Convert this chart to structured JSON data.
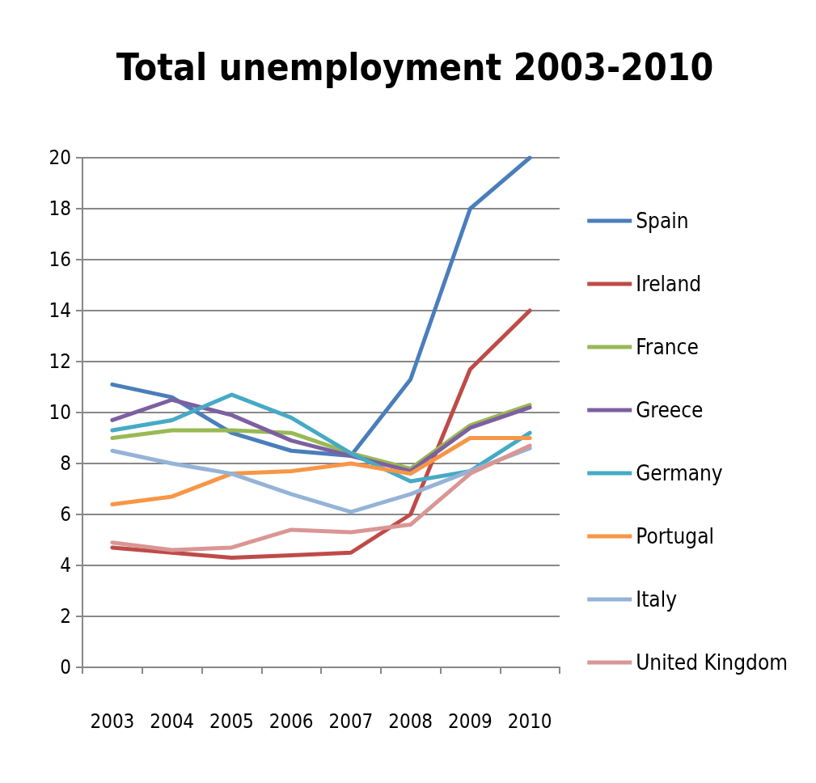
{
  "chart_data": {
    "type": "line",
    "title": "Total unemployment 2003-2010",
    "categories": [
      "2003",
      "2004",
      "2005",
      "2006",
      "2007",
      "2008",
      "2009",
      "2010"
    ],
    "series": [
      {
        "name": "Spain",
        "color": "#4a7ebb",
        "values": [
          11.1,
          10.6,
          9.2,
          8.5,
          8.3,
          11.3,
          18.0,
          20.0
        ]
      },
      {
        "name": "Ireland",
        "color": "#be4b48",
        "values": [
          4.7,
          4.5,
          4.3,
          4.4,
          4.5,
          6.0,
          11.7,
          14.0
        ]
      },
      {
        "name": "France",
        "color": "#98b954",
        "values": [
          9.0,
          9.3,
          9.3,
          9.2,
          8.4,
          7.8,
          9.5,
          10.3
        ]
      },
      {
        "name": "Greece",
        "color": "#7d60a0",
        "values": [
          9.7,
          10.5,
          9.9,
          8.9,
          8.3,
          7.7,
          9.4,
          10.2
        ]
      },
      {
        "name": "Germany",
        "color": "#46aac5",
        "values": [
          9.3,
          9.7,
          10.7,
          9.8,
          8.4,
          7.3,
          7.7,
          9.2
        ]
      },
      {
        "name": "Portugal",
        "color": "#f79646",
        "values": [
          6.4,
          6.7,
          7.6,
          7.7,
          8.0,
          7.6,
          9.0,
          9.0
        ]
      },
      {
        "name": "Italy",
        "color": "#95b3d7",
        "values": [
          8.5,
          8.0,
          7.6,
          6.8,
          6.1,
          6.8,
          7.7,
          8.6
        ]
      },
      {
        "name": "United Kingdom",
        "color": "#d99694",
        "values": [
          4.9,
          4.6,
          4.7,
          5.4,
          5.3,
          5.6,
          7.6,
          8.7
        ]
      }
    ],
    "ylim": [
      0,
      20
    ],
    "yticks": [
      0,
      2,
      4,
      6,
      8,
      10,
      12,
      14,
      16,
      18,
      20
    ],
    "grid": "y",
    "legend": "right",
    "marker": "none",
    "line_style": "solid"
  }
}
